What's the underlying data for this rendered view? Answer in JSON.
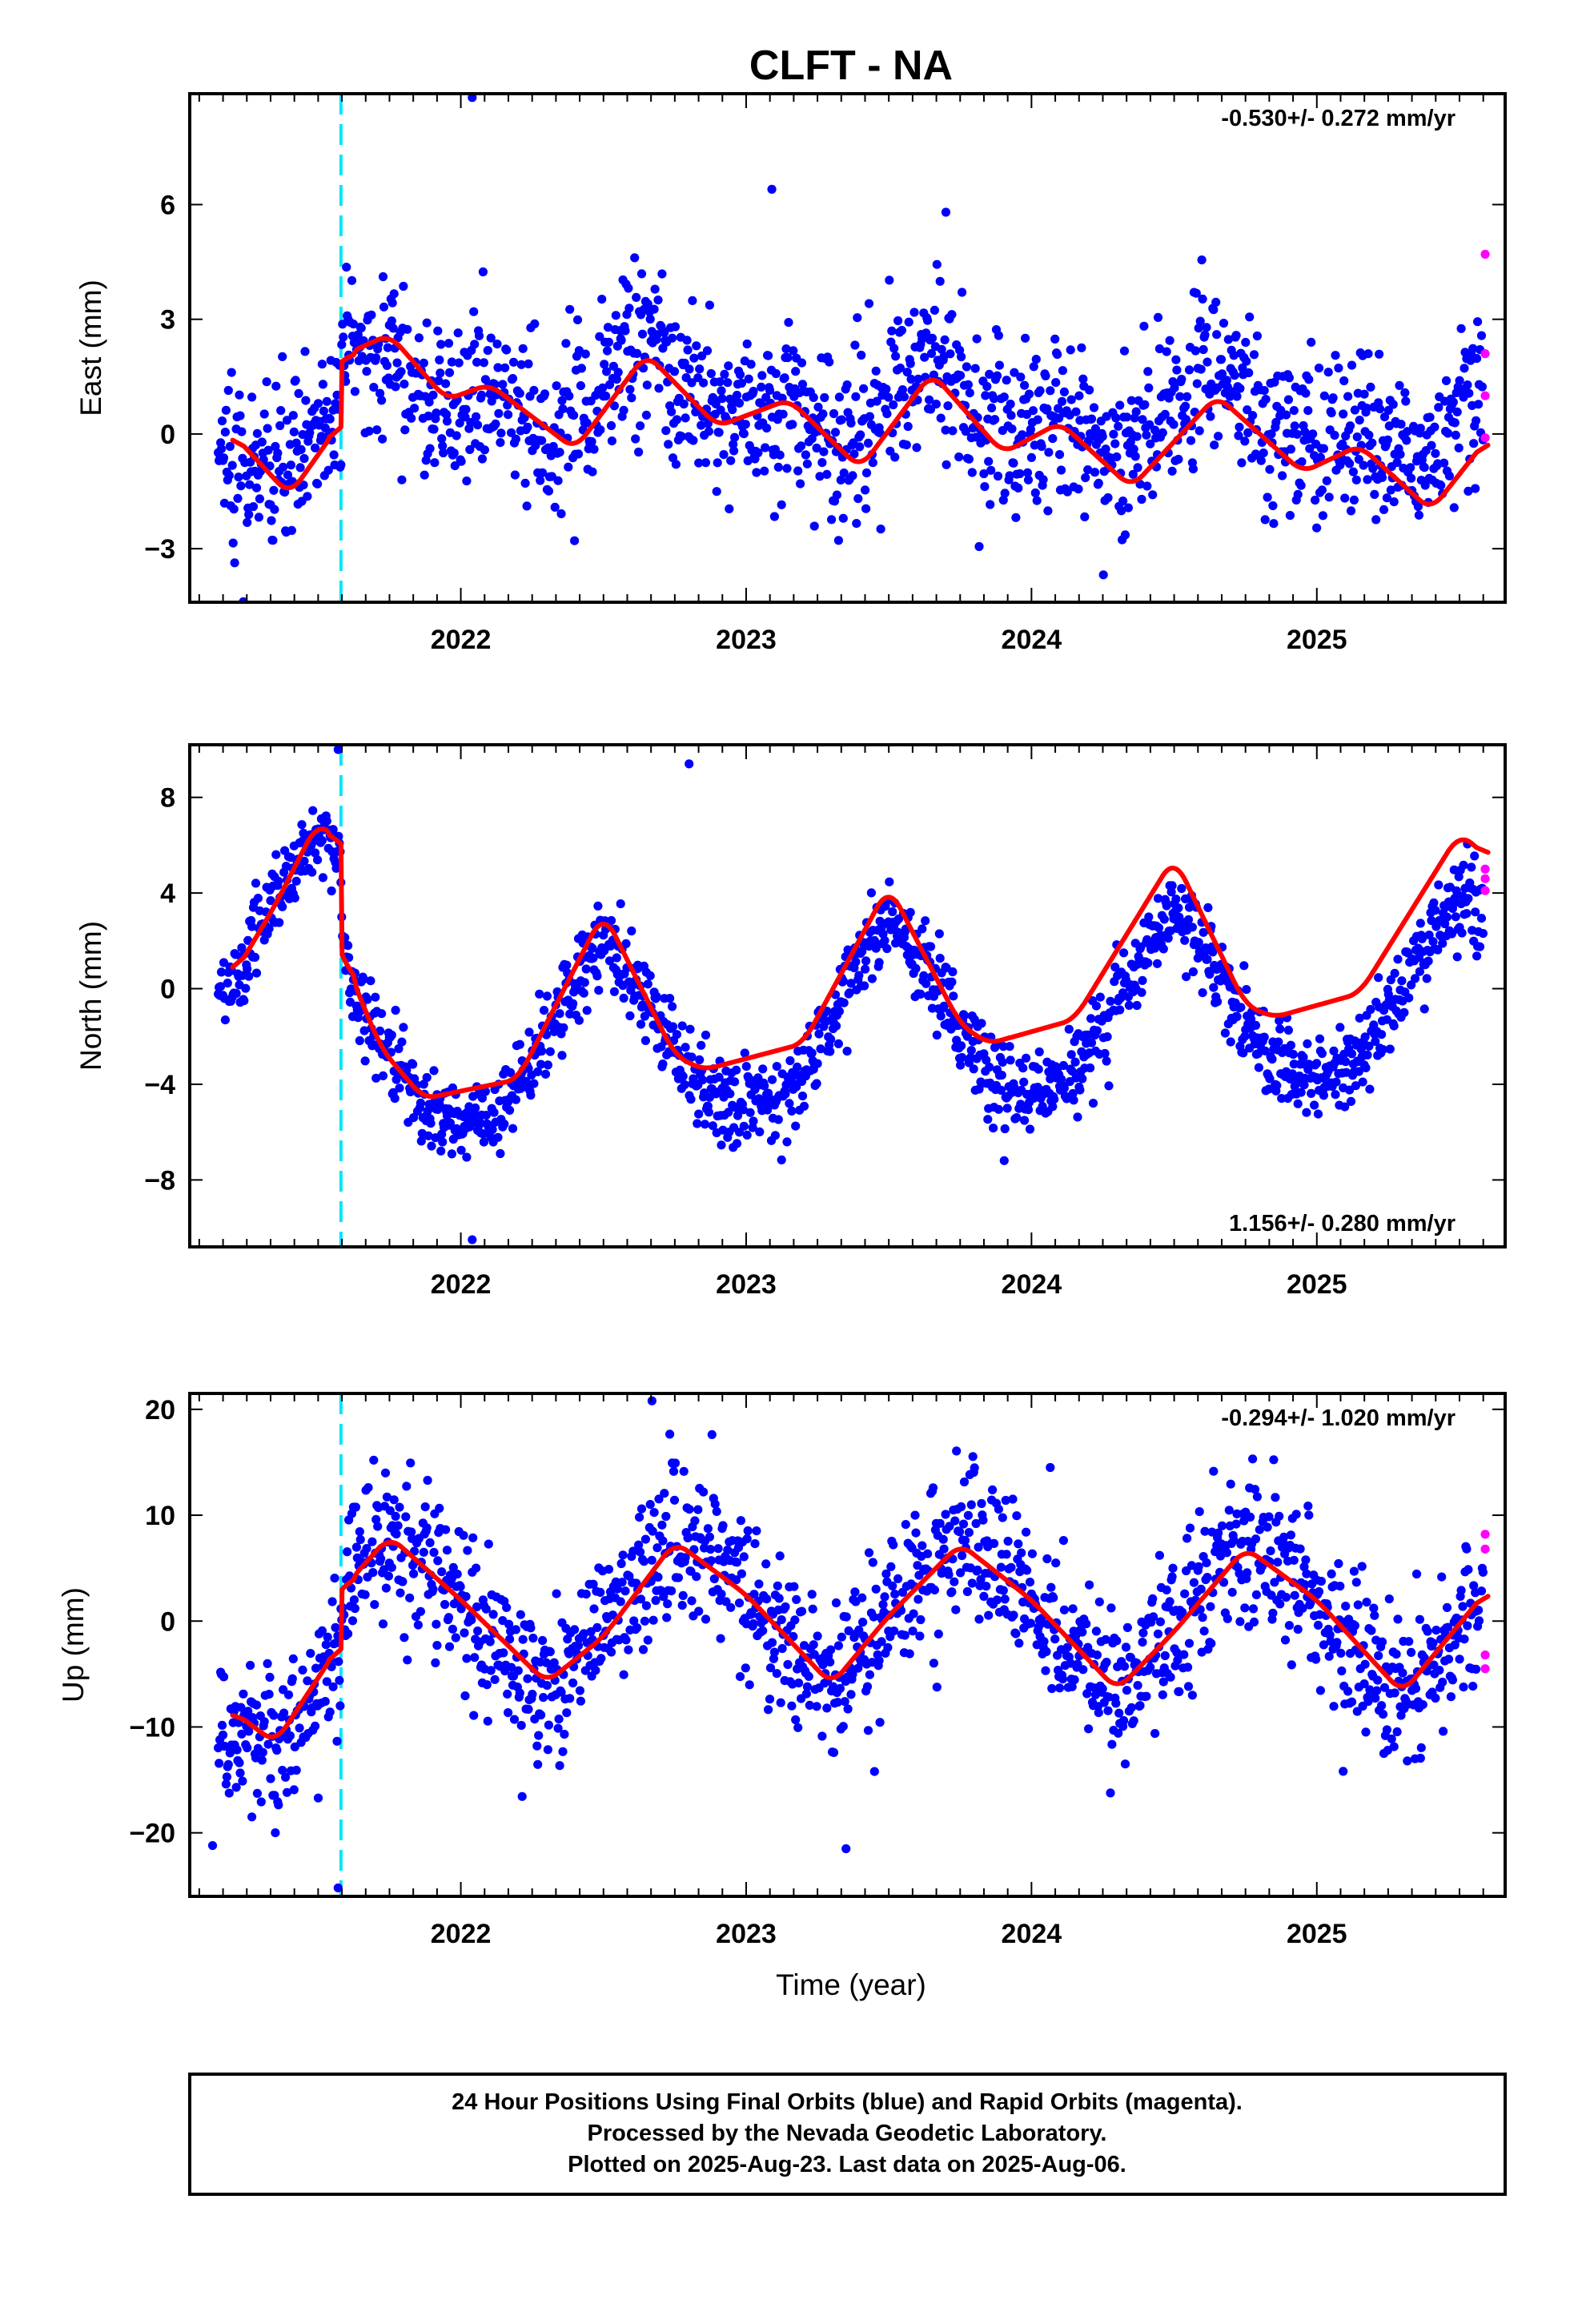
{
  "title": "CLFT - NA",
  "xlabel": "Time (year)",
  "footer": {
    "line1": "24 Hour Positions Using Final Orbits (blue) and Rapid Orbits (magenta).",
    "line2": "Processed by the Nevada Geodetic Laboratory.",
    "line3": "Plotted on 2025-Aug-23. Last data on 2025-Aug-06."
  },
  "colors": {
    "final": "#0000ff",
    "rapid": "#ff00ff",
    "model": "#ff0000",
    "event": "#00e5ff",
    "frame": "#000000"
  },
  "chart_data": [
    {
      "type": "scatter",
      "name": "east",
      "ylabel": "East (mm)",
      "rate": "-0.530+/- 0.272 mm/yr",
      "rate_position": "top-right",
      "xlim": [
        2021.05,
        2025.66
      ],
      "ylim": [
        -4.4,
        8.9
      ],
      "xticks": [
        2022,
        2023,
        2024,
        2025
      ],
      "yticks": [
        -3,
        0,
        3,
        6
      ],
      "event_x": 2021.58,
      "model_params": {
        "offset_before": -0.5,
        "step": 1.6,
        "annual_amp": 1.0,
        "annual_phase": 0.6,
        "semi_amp": 0.6,
        "semi_phase": 0.1,
        "noise": 1.1
      },
      "model_curve": [
        [
          2021.2,
          0.0
        ],
        [
          2021.4,
          -1.6
        ],
        [
          2021.57,
          0.2
        ],
        [
          2021.6,
          2.1
        ],
        [
          2021.75,
          2.6
        ],
        [
          2021.95,
          0.9
        ],
        [
          2022.1,
          1.3
        ],
        [
          2022.4,
          -0.4
        ],
        [
          2022.65,
          2.1
        ],
        [
          2022.9,
          0.2
        ],
        [
          2023.15,
          0.9
        ],
        [
          2023.4,
          -0.9
        ],
        [
          2023.65,
          1.6
        ],
        [
          2023.9,
          -0.5
        ],
        [
          2024.1,
          0.3
        ],
        [
          2024.35,
          -1.4
        ],
        [
          2024.65,
          1.0
        ],
        [
          2024.95,
          -1.0
        ],
        [
          2025.15,
          -0.3
        ],
        [
          2025.4,
          -2.0
        ],
        [
          2025.6,
          -0.1
        ]
      ],
      "rapid_points": [
        [
          2025.59,
          4.7
        ],
        [
          2025.59,
          2.1
        ],
        [
          2025.59,
          1.0
        ],
        [
          2025.59,
          -0.1
        ]
      ],
      "outliers": [
        [
          2022.04,
          8.8
        ],
        [
          2023.09,
          6.4
        ],
        [
          2023.7,
          5.8
        ]
      ]
    },
    {
      "type": "scatter",
      "name": "north",
      "ylabel": "North (mm)",
      "rate": "1.156+/- 0.280 mm/yr",
      "rate_position": "bottom-right",
      "xlim": [
        2021.05,
        2025.66
      ],
      "ylim": [
        -10.8,
        10.2
      ],
      "xticks": [
        2022,
        2023,
        2024,
        2025
      ],
      "yticks": [
        -8,
        -4,
        0,
        4,
        8
      ],
      "event_x": 2021.58,
      "model_params": {
        "offset_before": 2.0,
        "step": -5.0,
        "annual_amp": 3.9,
        "annual_phase": 0.52,
        "semi_amp": 0.0,
        "semi_phase": 0.0,
        "noise": 0.9
      },
      "model_curve": [
        [
          2021.2,
          0.5
        ],
        [
          2021.35,
          3.5
        ],
        [
          2021.5,
          7.0
        ],
        [
          2021.57,
          6.2
        ],
        [
          2021.6,
          1.0
        ],
        [
          2021.72,
          -2.5
        ],
        [
          2021.87,
          -4.6
        ],
        [
          2022.2,
          -3.8
        ],
        [
          2022.5,
          3.2
        ],
        [
          2022.75,
          -2.8
        ],
        [
          2022.85,
          -3.4
        ],
        [
          2023.2,
          -2.3
        ],
        [
          2023.5,
          4.3
        ],
        [
          2023.75,
          -1.5
        ],
        [
          2023.85,
          -2.3
        ],
        [
          2024.15,
          -1.3
        ],
        [
          2024.5,
          5.5
        ],
        [
          2024.75,
          -0.7
        ],
        [
          2024.85,
          -1.2
        ],
        [
          2025.15,
          -0.2
        ],
        [
          2025.5,
          6.5
        ],
        [
          2025.6,
          5.5
        ]
      ],
      "rapid_points": [
        [
          2025.59,
          5.0
        ],
        [
          2025.59,
          4.6
        ],
        [
          2025.59,
          4.1
        ]
      ],
      "outliers": [
        [
          2022.04,
          -10.5
        ],
        [
          2022.8,
          9.4
        ],
        [
          2021.57,
          10.0
        ]
      ]
    },
    {
      "type": "scatter",
      "name": "up",
      "ylabel": "Up (mm)",
      "rate": "-0.294+/- 1.020 mm/yr",
      "rate_position": "top-right",
      "xlim": [
        2021.05,
        2025.66
      ],
      "ylim": [
        -26.0,
        21.5
      ],
      "xticks": [
        2022,
        2023,
        2024,
        2025
      ],
      "yticks": [
        -20,
        -10,
        0,
        10,
        20
      ],
      "event_x": 2021.58,
      "model_params": {
        "offset_before": -6.0,
        "step": 7.0,
        "annual_amp": 7.3,
        "annual_phase": 0.78,
        "semi_amp": 0.0,
        "semi_phase": 0.0,
        "noise": 3.6
      },
      "model_curve": [
        [
          2021.2,
          -8.5
        ],
        [
          2021.35,
          -11.5
        ],
        [
          2021.57,
          -2.5
        ],
        [
          2021.6,
          3.5
        ],
        [
          2021.75,
          8.0
        ],
        [
          2022.0,
          2.0
        ],
        [
          2022.3,
          -5.8
        ],
        [
          2022.5,
          -1.5
        ],
        [
          2022.75,
          7.5
        ],
        [
          2023.0,
          2.5
        ],
        [
          2023.3,
          -6.0
        ],
        [
          2023.5,
          0.5
        ],
        [
          2023.75,
          7.3
        ],
        [
          2024.0,
          2.0
        ],
        [
          2024.3,
          -6.5
        ],
        [
          2024.5,
          -1.0
        ],
        [
          2024.75,
          6.9
        ],
        [
          2025.0,
          2.0
        ],
        [
          2025.3,
          -6.8
        ],
        [
          2025.6,
          3.0
        ]
      ],
      "rapid_points": [
        [
          2025.59,
          8.2
        ],
        [
          2025.59,
          6.8
        ],
        [
          2025.59,
          -3.2
        ],
        [
          2025.59,
          -4.5
        ]
      ],
      "outliers": [
        [
          2021.57,
          -25.2
        ],
        [
          2023.35,
          -21.5
        ],
        [
          2021.13,
          -21.2
        ],
        [
          2022.67,
          20.8
        ]
      ]
    }
  ]
}
